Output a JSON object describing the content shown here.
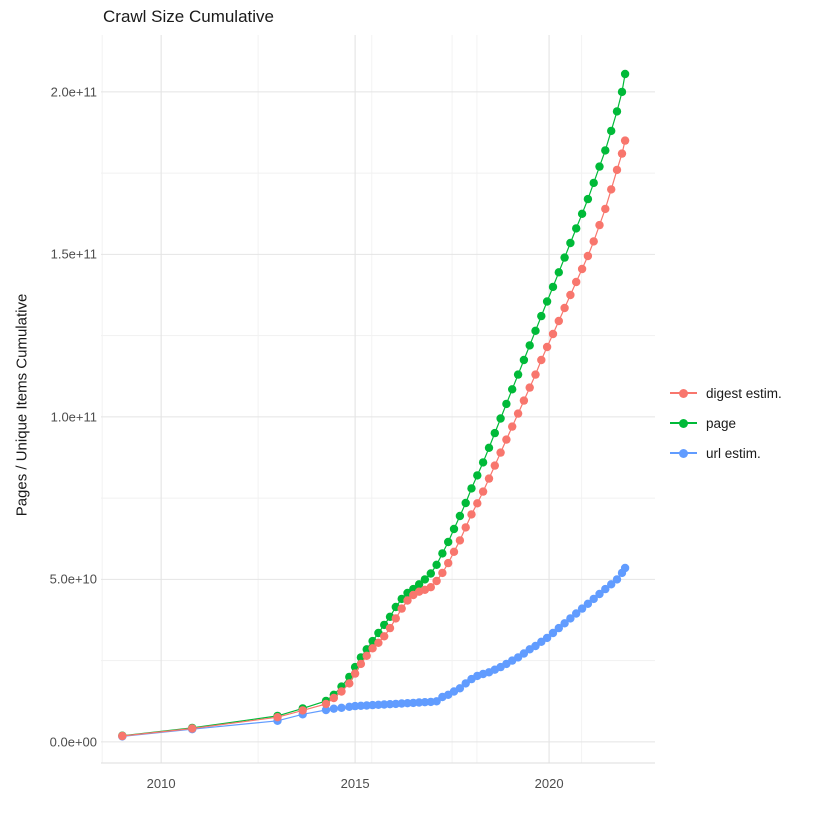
{
  "chart": {
    "title": "Crawl Size Cumulative",
    "ylabel": "Pages / Unique Items Cumulative",
    "xlabel": ""
  },
  "legend": {
    "entries": [
      {
        "label": "digest estim.",
        "color": "#F8766D"
      },
      {
        "label": "page",
        "color": "#00BA38"
      },
      {
        "label": "url estim.",
        "color": "#619CFF"
      }
    ]
  },
  "chart_data": {
    "type": "scatter",
    "title": "Crawl Size Cumulative",
    "xlabel": "",
    "ylabel": "Pages / Unique Items Cumulative",
    "grid": true,
    "legend_position": "right",
    "xlim": [
      2008.45,
      2022.73
    ],
    "ylim": [
      -6500000000.0,
      217500000000.0
    ],
    "x_ticks": {
      "labels": [
        "2010",
        "2015",
        "2020"
      ],
      "values": [
        2010,
        2015,
        2020
      ],
      "minor_values": [
        2012.5,
        2017.5,
        2008.48,
        2015.43,
        2018.14,
        2020.84
      ]
    },
    "y_ticks": {
      "labels": [
        "0.0e+00",
        "5.0e+10",
        "1.0e+11",
        "1.5e+11",
        "2.0e+11"
      ],
      "values": [
        0,
        50000000000.0,
        100000000000.0,
        150000000000.0,
        200000000000.0
      ],
      "minor_values": [
        25000000000.0,
        75000000000.0,
        125000000000.0,
        175000000000.0
      ]
    },
    "x": [
      2009.0,
      2010.8,
      2013.0,
      2013.65,
      2014.25,
      2014.45,
      2014.65,
      2014.85,
      2015.0,
      2015.15,
      2015.3,
      2015.45,
      2015.6,
      2015.75,
      2015.9,
      2016.05,
      2016.2,
      2016.35,
      2016.5,
      2016.65,
      2016.8,
      2016.95,
      2017.1,
      2017.25,
      2017.4,
      2017.55,
      2017.7,
      2017.85,
      2018.0,
      2018.15,
      2018.3,
      2018.45,
      2018.6,
      2018.75,
      2018.9,
      2019.05,
      2019.2,
      2019.35,
      2019.5,
      2019.65,
      2019.8,
      2019.95,
      2020.1,
      2020.25,
      2020.4,
      2020.55,
      2020.7,
      2020.85,
      2021.0,
      2021.15,
      2021.3,
      2021.45,
      2021.6,
      2021.75,
      2021.88,
      2021.96
    ],
    "series": [
      {
        "name": "page",
        "color": "#00BA38",
        "values": [
          1900000000.0,
          4300000000.0,
          8000000000.0,
          10300000000.0,
          12600000000.0,
          14500000000.0,
          17000000000.0,
          20000000000.0,
          23000000000.0,
          26000000000.0,
          28500000000.0,
          31000000000.0,
          33500000000.0,
          36000000000.0,
          38500000000.0,
          41500000000.0,
          44000000000.0,
          45800000000.0,
          47000000000.0,
          48500000000.0,
          50000000000.0,
          51800000000.0,
          54500000000.0,
          58000000000.0,
          61500000000.0,
          65500000000.0,
          69500000000.0,
          73500000000.0,
          78000000000.0,
          82000000000.0,
          86000000000.0,
          90500000000.0,
          95000000000.0,
          99500000000.0,
          104000000000.0,
          108500000000.0,
          113000000000.0,
          117500000000.0,
          122000000000.0,
          126500000000.0,
          131000000000.0,
          135500000000.0,
          140000000000.0,
          144500000000.0,
          149000000000.0,
          153500000000.0,
          158000000000.0,
          162500000000.0,
          167000000000.0,
          172000000000.0,
          177000000000.0,
          182000000000.0,
          188000000000.0,
          194000000000.0,
          200000000000.0,
          205500000000.0
        ]
      },
      {
        "name": "url estim.",
        "color": "#619CFF",
        "values": [
          1700000000.0,
          3900000000.0,
          6500000000.0,
          8500000000.0,
          9800000000.0,
          10200000000.0,
          10500000000.0,
          10800000000.0,
          11000000000.0,
          11100000000.0,
          11200000000.0,
          11300000000.0,
          11400000000.0,
          11500000000.0,
          11600000000.0,
          11700000000.0,
          11800000000.0,
          11900000000.0,
          12000000000.0,
          12100000000.0,
          12200000000.0,
          12300000000.0,
          12500000000.0,
          13800000000.0,
          14500000000.0,
          15500000000.0,
          16500000000.0,
          18000000000.0,
          19300000000.0,
          20300000000.0,
          20900000000.0,
          21400000000.0,
          22200000000.0,
          23000000000.0,
          24000000000.0,
          25000000000.0,
          26000000000.0,
          27200000000.0,
          28500000000.0,
          29500000000.0,
          30800000000.0,
          32000000000.0,
          33500000000.0,
          35000000000.0,
          36500000000.0,
          38000000000.0,
          39500000000.0,
          41000000000.0,
          42500000000.0,
          44000000000.0,
          45500000000.0,
          47000000000.0,
          48500000000.0,
          50000000000.0,
          52000000000.0,
          53500000000.0
        ]
      },
      {
        "name": "digest estim.",
        "color": "#F8766D",
        "values": [
          1800000000.0,
          4100000000.0,
          7600000000.0,
          9700000000.0,
          11700000000.0,
          13500000000.0,
          15500000000.0,
          18000000000.0,
          21000000000.0,
          24000000000.0,
          26500000000.0,
          28800000000.0,
          30500000000.0,
          32500000000.0,
          35000000000.0,
          38000000000.0,
          41000000000.0,
          43500000000.0,
          45200000000.0,
          46200000000.0,
          46800000000.0,
          47600000000.0,
          49500000000.0,
          52000000000.0,
          55000000000.0,
          58500000000.0,
          62000000000.0,
          66000000000.0,
          70000000000.0,
          73400000000.0,
          77000000000.0,
          81000000000.0,
          85000000000.0,
          89000000000.0,
          93000000000.0,
          97000000000.0,
          101000000000.0,
          105000000000.0,
          109000000000.0,
          113000000000.0,
          117500000000.0,
          121500000000.0,
          125500000000.0,
          129500000000.0,
          133500000000.0,
          137500000000.0,
          141500000000.0,
          145500000000.0,
          149500000000.0,
          154000000000.0,
          159000000000.0,
          164000000000.0,
          170000000000.0,
          176000000000.0,
          181000000000.0,
          185000000000.0
        ]
      }
    ]
  }
}
